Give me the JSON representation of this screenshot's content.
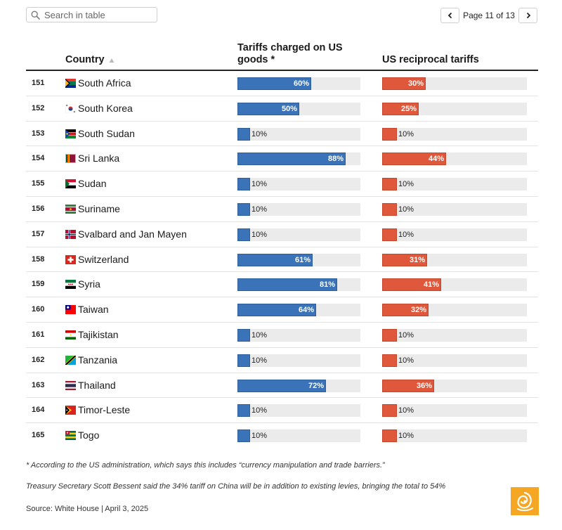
{
  "search": {
    "placeholder": "Search in table",
    "icon": "search-icon"
  },
  "pager": {
    "text": "Page 11 of 13",
    "prev_icon": "chevron-left-icon",
    "next_icon": "chevron-right-icon"
  },
  "colors": {
    "us_bar": "#3a73b8",
    "reciprocal_bar": "#e0583b",
    "track": "#ebebeb"
  },
  "chart_data": {
    "type": "bar",
    "columns": {
      "country": "Country",
      "tariffs": "Tariffs charged on US goods *",
      "reciprocal": "US reciprocal tariffs"
    },
    "sort_icon": "sort-up-icon",
    "xlim": [
      0,
      100
    ],
    "unit": "%",
    "rows": [
      {
        "rank": "151",
        "country": "South Africa",
        "flag": "south-africa",
        "tariff": 60,
        "reciprocal": 30
      },
      {
        "rank": "152",
        "country": "South Korea",
        "flag": "south-korea",
        "tariff": 50,
        "reciprocal": 25
      },
      {
        "rank": "153",
        "country": "South Sudan",
        "flag": "south-sudan",
        "tariff": 10,
        "reciprocal": 10
      },
      {
        "rank": "154",
        "country": "Sri Lanka",
        "flag": "sri-lanka",
        "tariff": 88,
        "reciprocal": 44
      },
      {
        "rank": "155",
        "country": "Sudan",
        "flag": "sudan",
        "tariff": 10,
        "reciprocal": 10
      },
      {
        "rank": "156",
        "country": "Suriname",
        "flag": "suriname",
        "tariff": 10,
        "reciprocal": 10
      },
      {
        "rank": "157",
        "country": "Svalbard and Jan Mayen",
        "flag": "norway",
        "tariff": 10,
        "reciprocal": 10
      },
      {
        "rank": "158",
        "country": "Switzerland",
        "flag": "switzerland",
        "tariff": 61,
        "reciprocal": 31
      },
      {
        "rank": "159",
        "country": "Syria",
        "flag": "syria",
        "tariff": 81,
        "reciprocal": 41
      },
      {
        "rank": "160",
        "country": "Taiwan",
        "flag": "taiwan",
        "tariff": 64,
        "reciprocal": 32
      },
      {
        "rank": "161",
        "country": "Tajikistan",
        "flag": "tajikistan",
        "tariff": 10,
        "reciprocal": 10
      },
      {
        "rank": "162",
        "country": "Tanzania",
        "flag": "tanzania",
        "tariff": 10,
        "reciprocal": 10
      },
      {
        "rank": "163",
        "country": "Thailand",
        "flag": "thailand",
        "tariff": 72,
        "reciprocal": 36
      },
      {
        "rank": "164",
        "country": "Timor-Leste",
        "flag": "timor-leste",
        "tariff": 10,
        "reciprocal": 10
      },
      {
        "rank": "165",
        "country": "Togo",
        "flag": "togo",
        "tariff": 10,
        "reciprocal": 10
      }
    ]
  },
  "notes": {
    "footnote": "* According to the US administration, which says this includes “currency manipulation and trade barriers.”",
    "bessent": "Treasury Secretary Scott Bessent said the 34% tariff on China will be in addition to existing levies, bringing the total to 54%"
  },
  "source": "Source: White House | April 3, 2025",
  "logo_icon": "al-jazeera-logo-icon"
}
